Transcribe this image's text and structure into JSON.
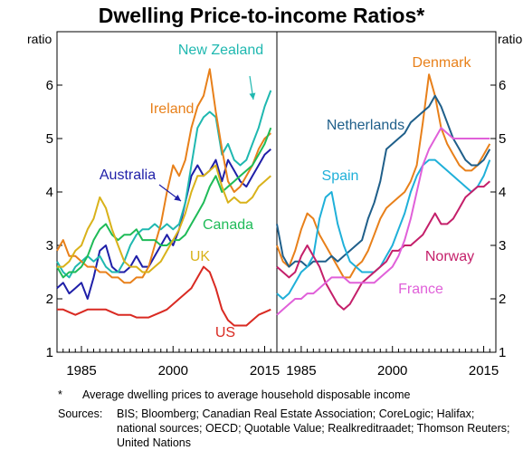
{
  "title": "Dwelling Price-to-income Ratios*",
  "footnote": {
    "marker": "*",
    "text": "Average dwelling prices to average household disposable income"
  },
  "sources": {
    "label": "Sources:",
    "text": "BIS; Bloomberg; Canadian Real Estate Association; CoreLogic; Halifax; national sources; OECD; Quotable Value; Realkreditraadet; Thomson Reuters; United Nations"
  },
  "chart_data": [
    {
      "type": "line",
      "ylabel": "ratio",
      "ylim": [
        1,
        7
      ],
      "yticks": [
        1,
        2,
        3,
        4,
        5,
        6
      ],
      "xlim": [
        1981,
        2017
      ],
      "xticks": [
        1985,
        2000,
        2015
      ],
      "grid": false,
      "series": [
        {
          "name": "Australia",
          "color": "#1f1fa8",
          "x": [
            1981,
            1982,
            1983,
            1984,
            1985,
            1986,
            1987,
            1988,
            1989,
            1990,
            1991,
            1992,
            1993,
            1994,
            1995,
            1996,
            1997,
            1998,
            1999,
            2000,
            2001,
            2002,
            2003,
            2004,
            2005,
            2006,
            2007,
            2008,
            2009,
            2010,
            2011,
            2012,
            2013,
            2014,
            2015,
            2016
          ],
          "values": [
            2.2,
            2.3,
            2.1,
            2.2,
            2.3,
            2.0,
            2.4,
            2.9,
            3.0,
            2.6,
            2.5,
            2.5,
            2.6,
            2.8,
            2.6,
            2.6,
            2.8,
            3.0,
            3.2,
            3.0,
            3.3,
            3.8,
            4.3,
            4.5,
            4.3,
            4.4,
            4.6,
            4.2,
            4.6,
            4.4,
            4.2,
            4.1,
            4.3,
            4.5,
            4.7,
            4.8
          ]
        },
        {
          "name": "New Zealand",
          "color": "#1fb8b0",
          "x": [
            1981,
            1982,
            1983,
            1984,
            1985,
            1986,
            1987,
            1988,
            1989,
            1990,
            1991,
            1992,
            1993,
            1994,
            1995,
            1996,
            1997,
            1998,
            1999,
            2000,
            2001,
            2002,
            2003,
            2004,
            2005,
            2006,
            2007,
            2008,
            2009,
            2010,
            2011,
            2012,
            2013,
            2014,
            2015,
            2016
          ],
          "values": [
            2.7,
            2.5,
            2.4,
            2.6,
            2.7,
            2.8,
            2.7,
            2.8,
            2.6,
            2.5,
            2.5,
            2.7,
            3.0,
            3.2,
            3.3,
            3.3,
            3.4,
            3.3,
            3.4,
            3.3,
            3.4,
            3.8,
            4.5,
            5.2,
            5.4,
            5.5,
            5.4,
            4.7,
            4.9,
            4.6,
            4.5,
            4.6,
            4.9,
            5.2,
            5.6,
            5.9
          ]
        },
        {
          "name": "Ireland",
          "color": "#e8801a",
          "x": [
            1981,
            1982,
            1983,
            1984,
            1985,
            1986,
            1987,
            1988,
            1989,
            1990,
            1991,
            1992,
            1993,
            1994,
            1995,
            1996,
            1997,
            1998,
            1999,
            2000,
            2001,
            2002,
            2003,
            2004,
            2005,
            2006,
            2007,
            2008,
            2009,
            2010,
            2011,
            2012,
            2013,
            2014,
            2015,
            2016
          ],
          "values": [
            2.9,
            3.1,
            2.8,
            2.8,
            2.7,
            2.6,
            2.6,
            2.5,
            2.5,
            2.4,
            2.4,
            2.3,
            2.3,
            2.4,
            2.4,
            2.6,
            3.0,
            3.4,
            4.0,
            4.5,
            4.3,
            4.6,
            5.2,
            5.6,
            5.8,
            6.3,
            5.5,
            4.8,
            4.2,
            4.0,
            4.1,
            4.3,
            4.5,
            4.8,
            5.0,
            5.1
          ]
        },
        {
          "name": "Canada",
          "color": "#1fbb58",
          "x": [
            1981,
            1982,
            1983,
            1984,
            1985,
            1986,
            1987,
            1988,
            1989,
            1990,
            1991,
            1992,
            1993,
            1994,
            1995,
            1996,
            1997,
            1998,
            1999,
            2000,
            2001,
            2002,
            2003,
            2004,
            2005,
            2006,
            2007,
            2008,
            2009,
            2010,
            2011,
            2012,
            2013,
            2014,
            2015,
            2016
          ],
          "values": [
            2.6,
            2.4,
            2.5,
            2.5,
            2.6,
            2.8,
            3.1,
            3.3,
            3.4,
            3.2,
            3.1,
            3.2,
            3.2,
            3.3,
            3.1,
            3.1,
            3.1,
            3.0,
            3.0,
            3.1,
            3.1,
            3.2,
            3.4,
            3.6,
            3.8,
            4.1,
            4.3,
            4.0,
            4.1,
            4.2,
            4.3,
            4.4,
            4.5,
            4.7,
            4.9,
            5.2
          ]
        },
        {
          "name": "UK",
          "color": "#d9b21a",
          "x": [
            1981,
            1982,
            1983,
            1984,
            1985,
            1986,
            1987,
            1988,
            1989,
            1990,
            1991,
            1992,
            1993,
            1994,
            1995,
            1996,
            1997,
            1998,
            1999,
            2000,
            2001,
            2002,
            2003,
            2004,
            2005,
            2006,
            2007,
            2008,
            2009,
            2010,
            2011,
            2012,
            2013,
            2014,
            2015,
            2016
          ],
          "values": [
            2.6,
            2.6,
            2.7,
            2.9,
            3.0,
            3.3,
            3.5,
            3.9,
            3.7,
            3.3,
            3.0,
            2.7,
            2.6,
            2.6,
            2.5,
            2.5,
            2.6,
            2.7,
            2.9,
            3.1,
            3.3,
            3.6,
            4.0,
            4.3,
            4.3,
            4.4,
            4.5,
            4.1,
            3.8,
            3.9,
            3.8,
            3.8,
            3.9,
            4.1,
            4.2,
            4.3
          ]
        },
        {
          "name": "US",
          "color": "#d92a22",
          "x": [
            1981,
            1982,
            1983,
            1984,
            1985,
            1986,
            1987,
            1988,
            1989,
            1990,
            1991,
            1992,
            1993,
            1994,
            1995,
            1996,
            1997,
            1998,
            1999,
            2000,
            2001,
            2002,
            2003,
            2004,
            2005,
            2006,
            2007,
            2008,
            2009,
            2010,
            2011,
            2012,
            2013,
            2014,
            2015,
            2016
          ],
          "values": [
            1.8,
            1.8,
            1.75,
            1.7,
            1.75,
            1.8,
            1.8,
            1.8,
            1.8,
            1.75,
            1.7,
            1.7,
            1.7,
            1.65,
            1.65,
            1.65,
            1.7,
            1.75,
            1.8,
            1.9,
            2.0,
            2.1,
            2.2,
            2.4,
            2.6,
            2.5,
            2.2,
            1.8,
            1.6,
            1.5,
            1.5,
            1.5,
            1.6,
            1.7,
            1.75,
            1.8
          ]
        }
      ]
    },
    {
      "type": "line",
      "ylabel": "ratio",
      "ylim": [
        1,
        7
      ],
      "yticks": [
        1,
        2,
        3,
        4,
        5,
        6
      ],
      "xlim": [
        1981,
        2017
      ],
      "xticks": [
        1985,
        2000,
        2015
      ],
      "grid": false,
      "series": [
        {
          "name": "Denmark",
          "color": "#e8801a",
          "x": [
            1981,
            1982,
            1983,
            1984,
            1985,
            1986,
            1987,
            1988,
            1989,
            1990,
            1991,
            1992,
            1993,
            1994,
            1995,
            1996,
            1997,
            1998,
            1999,
            2000,
            2001,
            2002,
            2003,
            2004,
            2005,
            2006,
            2007,
            2008,
            2009,
            2010,
            2011,
            2012,
            2013,
            2014,
            2015,
            2016
          ],
          "values": [
            3.0,
            2.7,
            2.6,
            2.9,
            3.3,
            3.6,
            3.5,
            3.2,
            3.0,
            2.8,
            2.6,
            2.4,
            2.4,
            2.6,
            2.7,
            2.9,
            3.2,
            3.5,
            3.7,
            3.8,
            3.9,
            4.0,
            4.2,
            4.5,
            5.3,
            6.2,
            5.8,
            5.2,
            4.9,
            4.7,
            4.5,
            4.4,
            4.4,
            4.5,
            4.7,
            4.9
          ]
        },
        {
          "name": "Netherlands",
          "color": "#1f5f8a",
          "x": [
            1981,
            1982,
            1983,
            1984,
            1985,
            1986,
            1987,
            1988,
            1989,
            1990,
            1991,
            1992,
            1993,
            1994,
            1995,
            1996,
            1997,
            1998,
            1999,
            2000,
            2001,
            2002,
            2003,
            2004,
            2005,
            2006,
            2007,
            2008,
            2009,
            2010,
            2011,
            2012,
            2013,
            2014,
            2015,
            2016
          ],
          "values": [
            3.4,
            2.8,
            2.6,
            2.7,
            2.7,
            2.6,
            2.7,
            2.7,
            2.7,
            2.8,
            2.7,
            2.8,
            2.9,
            3.0,
            3.1,
            3.5,
            3.8,
            4.2,
            4.8,
            4.9,
            5.0,
            5.1,
            5.3,
            5.4,
            5.5,
            5.6,
            5.8,
            5.6,
            5.3,
            5.0,
            4.8,
            4.6,
            4.5,
            4.5,
            4.6,
            4.8
          ]
        },
        {
          "name": "Spain",
          "color": "#1fb0d9",
          "x": [
            1981,
            1982,
            1983,
            1984,
            1985,
            1986,
            1987,
            1988,
            1989,
            1990,
            1991,
            1992,
            1993,
            1994,
            1995,
            1996,
            1997,
            1998,
            1999,
            2000,
            2001,
            2002,
            2003,
            2004,
            2005,
            2006,
            2007,
            2008,
            2009,
            2010,
            2011,
            2012,
            2013,
            2014,
            2015,
            2016
          ],
          "values": [
            2.1,
            2.0,
            2.1,
            2.3,
            2.5,
            2.6,
            2.8,
            3.5,
            3.9,
            4.0,
            3.4,
            3.0,
            2.7,
            2.6,
            2.5,
            2.5,
            2.5,
            2.6,
            2.8,
            3.0,
            3.3,
            3.6,
            4.0,
            4.3,
            4.5,
            4.6,
            4.6,
            4.5,
            4.4,
            4.3,
            4.2,
            4.1,
            4.0,
            4.1,
            4.3,
            4.6
          ]
        },
        {
          "name": "Norway",
          "color": "#c41f6a",
          "x": [
            1981,
            1982,
            1983,
            1984,
            1985,
            1986,
            1987,
            1988,
            1989,
            1990,
            1991,
            1992,
            1993,
            1994,
            1995,
            1996,
            1997,
            1998,
            1999,
            2000,
            2001,
            2002,
            2003,
            2004,
            2005,
            2006,
            2007,
            2008,
            2009,
            2010,
            2011,
            2012,
            2013,
            2014,
            2015,
            2016
          ],
          "values": [
            2.6,
            2.5,
            2.4,
            2.5,
            2.8,
            3.0,
            2.8,
            2.6,
            2.3,
            2.1,
            1.9,
            1.8,
            1.9,
            2.1,
            2.3,
            2.4,
            2.5,
            2.6,
            2.7,
            2.9,
            2.9,
            3.0,
            3.0,
            3.1,
            3.2,
            3.4,
            3.6,
            3.4,
            3.4,
            3.5,
            3.7,
            3.9,
            4.0,
            4.1,
            4.1,
            4.2
          ]
        },
        {
          "name": "France",
          "color": "#e060d9",
          "x": [
            1981,
            1982,
            1983,
            1984,
            1985,
            1986,
            1987,
            1988,
            1989,
            1990,
            1991,
            1992,
            1993,
            1994,
            1995,
            1996,
            1997,
            1998,
            1999,
            2000,
            2001,
            2002,
            2003,
            2004,
            2005,
            2006,
            2007,
            2008,
            2009,
            2010,
            2011,
            2012,
            2013,
            2014,
            2015,
            2016
          ],
          "values": [
            1.7,
            1.8,
            1.9,
            2.0,
            2.0,
            2.1,
            2.1,
            2.2,
            2.3,
            2.4,
            2.4,
            2.4,
            2.3,
            2.3,
            2.3,
            2.3,
            2.3,
            2.4,
            2.5,
            2.6,
            2.8,
            3.1,
            3.5,
            4.0,
            4.5,
            4.8,
            5.0,
            5.2,
            5.1,
            5.0,
            5.0,
            5.0,
            5.0,
            5.0,
            5.0,
            5.0
          ]
        }
      ]
    }
  ]
}
